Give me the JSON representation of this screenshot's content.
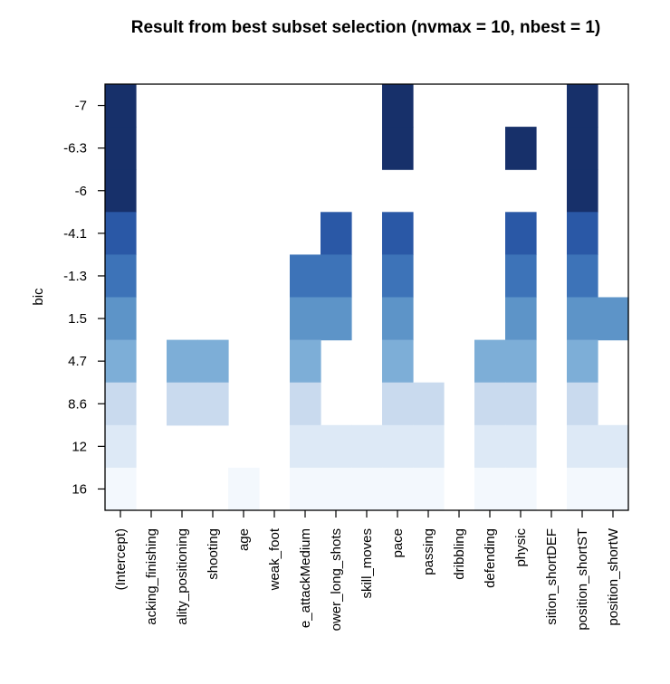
{
  "chart_data": {
    "type": "heatmap",
    "title": "Result from best subset selection (nvmax = 10, nbest = 1)",
    "ylabel": "bic",
    "xlabel": "",
    "x_tick_labels": [
      "(Intercept)",
      "acking_finishing",
      "ality_positioning",
      "shooting",
      "age",
      "weak_foot",
      "e_attackMedium",
      "ower_long_shots",
      "skill_moves",
      "pace",
      "passing",
      "dribbling",
      "defending",
      "physic",
      "sition_shortDEF",
      "position_shortST",
      "position_shortW"
    ],
    "y_tick_labels": [
      "-7",
      "-6.3",
      "-6",
      "-4.1",
      "-1.3",
      "1.5",
      "4.7",
      "8.6",
      "12",
      "16"
    ],
    "row_colors": [
      "#17306a",
      "#17306a",
      "#17306a",
      "#2a58a6",
      "#3d73b8",
      "#5d94c8",
      "#7daed7",
      "#c9daee",
      "#dde9f6",
      "#f3f8fd"
    ],
    "included": [
      [
        1,
        0,
        0,
        0,
        0,
        0,
        0,
        0,
        0,
        1,
        0,
        0,
        0,
        0,
        0,
        1,
        0
      ],
      [
        1,
        0,
        0,
        0,
        0,
        0,
        0,
        0,
        0,
        1,
        0,
        0,
        0,
        1,
        0,
        1,
        0
      ],
      [
        1,
        0,
        0,
        0,
        0,
        0,
        0,
        0,
        0,
        0,
        0,
        0,
        0,
        0,
        0,
        1,
        0
      ],
      [
        1,
        0,
        0,
        0,
        0,
        0,
        0,
        1,
        0,
        1,
        0,
        0,
        0,
        1,
        0,
        1,
        0
      ],
      [
        1,
        0,
        0,
        0,
        0,
        0,
        1,
        1,
        0,
        1,
        0,
        0,
        0,
        1,
        0,
        1,
        0
      ],
      [
        1,
        0,
        0,
        0,
        0,
        0,
        1,
        1,
        0,
        1,
        0,
        0,
        0,
        1,
        0,
        1,
        1
      ],
      [
        1,
        0,
        1,
        1,
        0,
        0,
        1,
        0,
        0,
        1,
        0,
        0,
        1,
        1,
        0,
        1,
        0
      ],
      [
        1,
        0,
        1,
        1,
        0,
        0,
        1,
        0,
        0,
        1,
        1,
        0,
        1,
        1,
        0,
        1,
        0
      ],
      [
        1,
        0,
        0,
        0,
        0,
        0,
        1,
        1,
        1,
        1,
        1,
        0,
        1,
        1,
        0,
        1,
        1
      ],
      [
        1,
        0,
        0,
        0,
        1,
        0,
        1,
        1,
        1,
        1,
        1,
        0,
        1,
        1,
        0,
        1,
        1
      ]
    ],
    "grid": false,
    "legend": "none"
  }
}
